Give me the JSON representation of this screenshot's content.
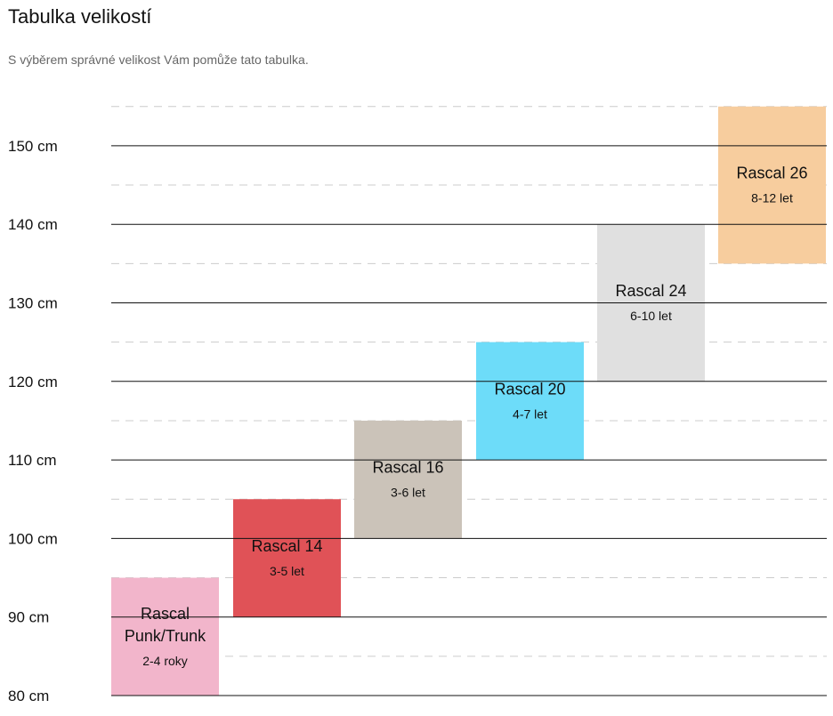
{
  "title": "Tabulka velikostí",
  "subtitle": "S výběrem správné velikost Vám pomůže tato tabulka.",
  "chart_data": {
    "type": "bar",
    "orientation": "floating-range",
    "ylim": [
      80,
      155
    ],
    "y_unit": "cm",
    "yticks": [
      {
        "value": 80,
        "label": "80 cm"
      },
      {
        "value": 90,
        "label": "90 cm"
      },
      {
        "value": 100,
        "label": "100 cm"
      },
      {
        "value": 110,
        "label": "110 cm"
      },
      {
        "value": 120,
        "label": "120 cm"
      },
      {
        "value": 130,
        "label": "130 cm"
      },
      {
        "value": 140,
        "label": "140 cm"
      },
      {
        "value": 150,
        "label": "150 cm"
      }
    ],
    "grid": "solid at labeled ticks, dashed at half-steps",
    "bars": [
      {
        "name": "Rascal Punk/Trunk",
        "name_lines": [
          "Rascal",
          "Punk/Trunk"
        ],
        "age": "2-4 roky",
        "range": [
          80,
          95
        ],
        "color": "#f2b5cb"
      },
      {
        "name": "Rascal 14",
        "name_lines": [
          "Rascal 14"
        ],
        "age": "3-5 let",
        "range": [
          90,
          105
        ],
        "color": "#e05257"
      },
      {
        "name": "Rascal 16",
        "name_lines": [
          "Rascal 16"
        ],
        "age": "3-6 let",
        "range": [
          100,
          115
        ],
        "color": "#cbc3b9"
      },
      {
        "name": "Rascal 20",
        "name_lines": [
          "Rascal 20"
        ],
        "age": "4-7 let",
        "range": [
          110,
          125
        ],
        "color": "#6ddcf9"
      },
      {
        "name": "Rascal 24",
        "name_lines": [
          "Rascal 24"
        ],
        "age": "6-10 let",
        "range": [
          120,
          140
        ],
        "color": "#e0e0e0"
      },
      {
        "name": "Rascal 26",
        "name_lines": [
          "Rascal 26"
        ],
        "age": "8-12 let",
        "range": [
          135,
          155
        ],
        "color": "#f7cd9e"
      }
    ]
  }
}
